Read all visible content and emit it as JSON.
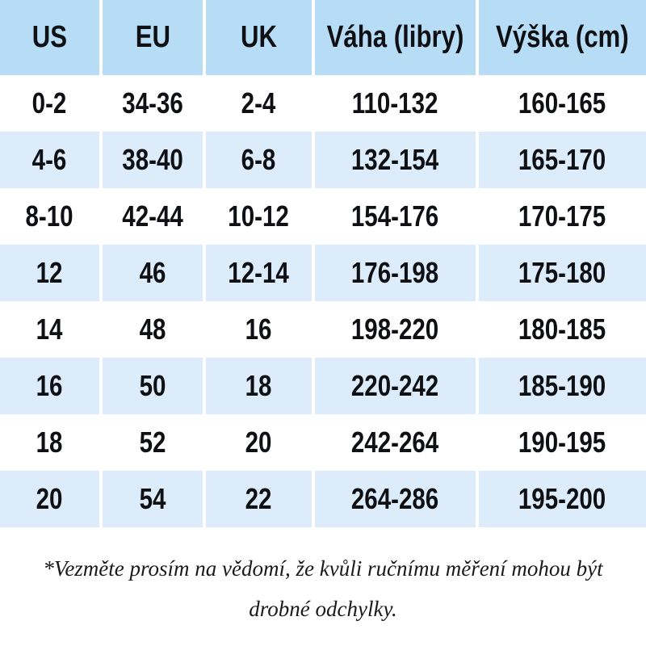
{
  "chart_data": {
    "type": "table",
    "title": "Size conversion chart (Czech)",
    "columns": [
      "US",
      "EU",
      "UK",
      "Váha (libry)",
      "Výška (cm)"
    ],
    "rows": [
      [
        "0-2",
        "34-36",
        "2-4",
        "110-132",
        "160-165"
      ],
      [
        "4-6",
        "38-40",
        "6-8",
        "132-154",
        "165-170"
      ],
      [
        "8-10",
        "42-44",
        "10-12",
        "154-176",
        "170-175"
      ],
      [
        "12",
        "46",
        "12-14",
        "176-198",
        "175-180"
      ],
      [
        "14",
        "48",
        "16",
        "198-220",
        "180-185"
      ],
      [
        "16",
        "50",
        "18",
        "220-242",
        "185-190"
      ],
      [
        "18",
        "52",
        "20",
        "242-264",
        "190-195"
      ],
      [
        "20",
        "54",
        "22",
        "264-286",
        "195-200"
      ]
    ],
    "layout_hints": {
      "alternating_rows": "white / pale blue, starting white",
      "dividers": "4px white vertical gaps between columns"
    }
  },
  "footnote": {
    "line1": "*Vezměte prosím na vědomí, že kvůli ručnímu měření mohou být",
    "line2": "drobné odchylky."
  },
  "colors": {
    "header_bg": "#b7dcf6",
    "row_alt_bg": "#dcecfa",
    "row_bg": "#ffffff",
    "divider": "#ffffff",
    "table_text": "#0f1014",
    "footnote_text": "#1a1a1a"
  }
}
